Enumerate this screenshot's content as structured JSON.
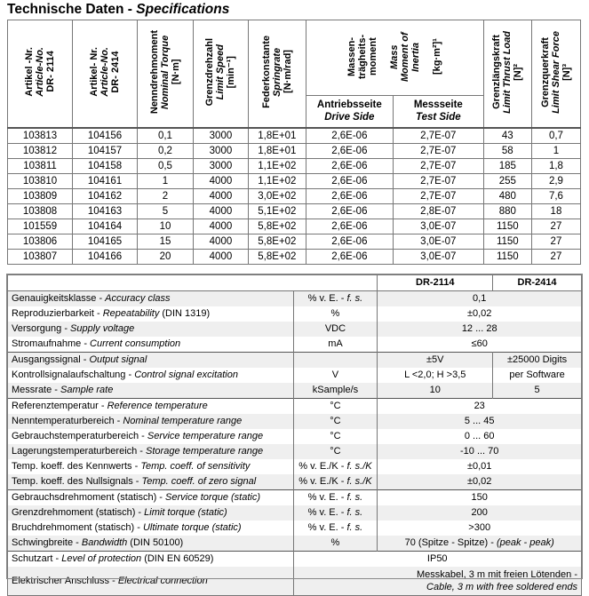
{
  "title": {
    "de": "Technische Daten - ",
    "en": "Specifications"
  },
  "spec_table": {
    "headers": [
      {
        "de": "Artikel -Nr.",
        "en": "Article-No.",
        "unit": "DR- 2114"
      },
      {
        "de": "Artikel- Nr.",
        "en": "Article-No.",
        "unit": "DR- 2414"
      },
      {
        "de": "Nenndrehmoment",
        "en": "Nominal Torque",
        "unit": "[N·m]"
      },
      {
        "de": "Grenzdrehzahl",
        "en": "Limit Speed",
        "unit": "[min⁻¹]"
      },
      {
        "de": "Federkonstante",
        "en": "Springrate",
        "unit": "[N·m/rad]"
      },
      {
        "de": "Massen- trägheits- moment",
        "en": "Mass Moment of Inertia",
        "unit": "[kg·m²]¹"
      },
      {
        "de": "Grenzlängskraft",
        "en": "Limit Thrust Load",
        "unit": "[N]²"
      },
      {
        "de": "Grenzquerkraft",
        "en": "Limit Shear Force",
        "unit": "[N]³"
      }
    ],
    "subheaders": [
      {
        "de": "Antriebsseite",
        "en": "Drive Side"
      },
      {
        "de": "Messseite",
        "en": "Test Side"
      }
    ],
    "rows": [
      [
        "103813",
        "104156",
        "0,1",
        "3000",
        "1,8E+01",
        "2,6E-06",
        "2,7E-07",
        "43",
        "0,7"
      ],
      [
        "103812",
        "104157",
        "0,2",
        "3000",
        "1,8E+01",
        "2,6E-06",
        "2,7E-07",
        "58",
        "1"
      ],
      [
        "103811",
        "104158",
        "0,5",
        "3000",
        "1,1E+02",
        "2,6E-06",
        "2,7E-07",
        "185",
        "1,8"
      ],
      [
        "103810",
        "104161",
        "1",
        "4000",
        "1,1E+02",
        "2,6E-06",
        "2,7E-07",
        "255",
        "2,9"
      ],
      [
        "103809",
        "104162",
        "2",
        "4000",
        "3,0E+02",
        "2,6E-06",
        "2,7E-07",
        "480",
        "7,6"
      ],
      [
        "103808",
        "104163",
        "5",
        "4000",
        "5,1E+02",
        "2,6E-06",
        "2,8E-07",
        "880",
        "18"
      ],
      [
        "101559",
        "104164",
        "10",
        "4000",
        "5,8E+02",
        "2,6E-06",
        "3,0E-07",
        "1150",
        "27"
      ],
      [
        "103806",
        "104165",
        "15",
        "4000",
        "5,8E+02",
        "2,6E-06",
        "3,0E-07",
        "1150",
        "27"
      ],
      [
        "103807",
        "104166",
        "20",
        "4000",
        "5,8E+02",
        "2,6E-06",
        "3,0E-07",
        "1150",
        "27"
      ]
    ]
  },
  "params_table": {
    "models": [
      "DR-2114",
      "DR-2414"
    ],
    "rows": [
      {
        "de": "Genauigkeitsklasse - ",
        "en": "Accuracy class",
        "extra": "",
        "unit_de": "% v. E. - ",
        "unit_en": "f. s.",
        "values": [
          "0,1"
        ]
      },
      {
        "de": "Reproduzierbarkeit - ",
        "en": "Repeatability",
        "extra": " (DIN 1319)",
        "unit_de": "%",
        "unit_en": "",
        "values": [
          "±0,02"
        ]
      },
      {
        "de": "Versorgung - ",
        "en": "Supply voltage",
        "extra": "",
        "unit_de": "VDC",
        "unit_en": "",
        "values": [
          "12 ... 28"
        ]
      },
      {
        "de": "Stromaufnahme - ",
        "en": "Current consumption",
        "extra": "",
        "unit_de": "mA",
        "unit_en": "",
        "values": [
          "≤60"
        ]
      },
      {
        "de": "Ausgangssignal - ",
        "en": "Output signal",
        "extra": "",
        "unit_de": "",
        "unit_en": "",
        "values": [
          "±5V",
          "±25000 Digits"
        ],
        "group": true
      },
      {
        "de": "Kontrollsignalaufschaltung - ",
        "en": "Control signal excitation",
        "extra": "",
        "unit_de": "V",
        "unit_en": "",
        "values": [
          "L <2,0; H >3,5",
          "per Software"
        ]
      },
      {
        "de": "Messrate - ",
        "en": "Sample rate",
        "extra": "",
        "unit_de": "kSample/s",
        "unit_en": "",
        "values": [
          "10",
          "5"
        ]
      },
      {
        "de": "Referenztemperatur - ",
        "en": "Reference temperature",
        "extra": "",
        "unit_de": "°C",
        "unit_en": "",
        "values": [
          "23"
        ],
        "group": true
      },
      {
        "de": "Nenntemperaturbereich - ",
        "en": "Nominal temperature range",
        "extra": "",
        "unit_de": "°C",
        "unit_en": "",
        "values": [
          "5 ... 45"
        ]
      },
      {
        "de": "Gebrauchstemperaturbereich - ",
        "en": "Service temperature range",
        "extra": "",
        "unit_de": "°C",
        "unit_en": "",
        "values": [
          "0 ... 60"
        ]
      },
      {
        "de": "Lagerungstemperaturbereich - ",
        "en": "Storage temperature range",
        "extra": "",
        "unit_de": "°C",
        "unit_en": "",
        "values": [
          "-10 ... 70"
        ]
      },
      {
        "de": "Temp. koeff. des Kennwerts - ",
        "en": "Temp. coeff. of sensitivity",
        "extra": "",
        "unit_de": "% v. E./K - ",
        "unit_en": "f. s./K",
        "values": [
          "±0,01"
        ]
      },
      {
        "de": "Temp. koeff. des Nullsignals - ",
        "en": "Temp. coeff. of zero signal",
        "extra": "",
        "unit_de": "% v. E./K - ",
        "unit_en": "f. s./K",
        "values": [
          "±0,02"
        ]
      },
      {
        "de": "Gebrauchsdrehmoment (statisch) - ",
        "en": "Service torque (static)",
        "extra": "",
        "unit_de": "% v. E. - ",
        "unit_en": "f. s.",
        "values": [
          "150"
        ],
        "group": true
      },
      {
        "de": "Grenzdrehmoment (statisch) - ",
        "en": "Limit torque (static)",
        "extra": "",
        "unit_de": "% v. E. - ",
        "unit_en": "f. s.",
        "values": [
          "200"
        ]
      },
      {
        "de": "Bruchdrehmoment (statisch) - ",
        "en": "Ultimate torque (static)",
        "extra": "",
        "unit_de": "% v. E. - ",
        "unit_en": "f. s.",
        "values": [
          ">300"
        ]
      },
      {
        "de": "Schwingbreite - ",
        "en": "Bandwidth",
        "extra": " (DIN 50100)",
        "unit_de": "%",
        "unit_en": "",
        "values": [
          "70 (Spitze - Spitze) - "
        ],
        "value_en": "(peak - peak)"
      },
      {
        "de": "Schutzart - ",
        "en": "Level of protection",
        "extra": " (DIN EN 60529)",
        "values": [
          "IP50"
        ],
        "group": true,
        "merged_unit": true
      },
      {
        "de": "Elektrischer Anschluss - ",
        "en": "Electrical connection",
        "extra": "",
        "values": [
          "Messkabel, 3 m mit freien Lötenden -"
        ],
        "value_en": "Cable, 3 m with free soldered ends",
        "merged_unit": true,
        "tall": true
      }
    ]
  }
}
